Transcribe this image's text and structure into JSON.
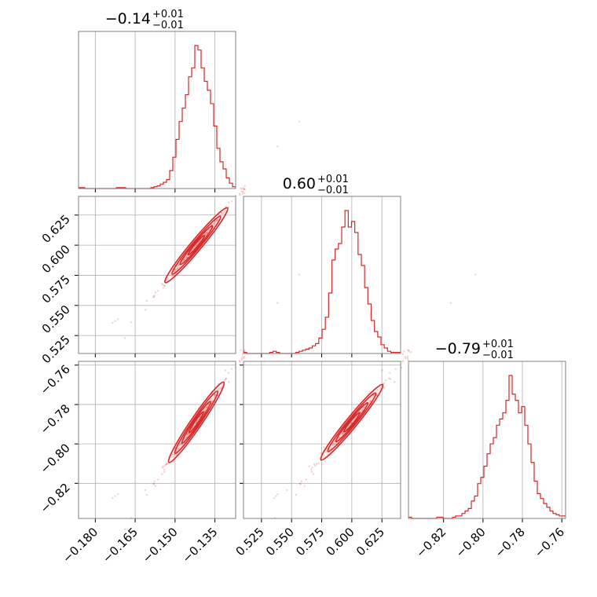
{
  "chart_data": {
    "type": "corner",
    "color": "#d62728",
    "grid": true,
    "titles": [
      {
        "value": "−0.14",
        "plus": "+0.01",
        "minus": "−0.01"
      },
      {
        "value": "0.60",
        "plus": "+0.01",
        "minus": "−0.01"
      },
      {
        "value": "−0.79",
        "plus": "+0.01",
        "minus": "−0.01"
      }
    ],
    "params": [
      {
        "range": [
          -0.1863,
          -0.1272
        ],
        "ticks": [
          -0.18,
          -0.165,
          -0.15,
          -0.135
        ],
        "tick_labels": [
          "−0.180",
          "−0.165",
          "−0.150",
          "−0.135"
        ]
      },
      {
        "range": [
          0.5101,
          0.6405
        ],
        "ticks": [
          0.525,
          0.55,
          0.575,
          0.6,
          0.625
        ],
        "tick_labels": [
          "0.525",
          "0.550",
          "0.575",
          "0.600",
          "0.625"
        ]
      },
      {
        "range": [
          -0.8378,
          -0.7581
        ],
        "ticks": [
          -0.82,
          -0.8,
          -0.78,
          -0.76
        ],
        "tick_labels": [
          "−0.82",
          "−0.80",
          "−0.78",
          "−0.76"
        ]
      }
    ],
    "histograms": [
      {
        "counts": [
          1,
          1,
          0,
          0,
          0,
          0,
          0,
          0,
          0,
          0,
          0,
          0,
          1,
          1,
          1,
          0,
          0,
          0,
          0,
          0,
          0,
          0,
          0,
          1,
          2,
          3,
          5,
          7,
          10,
          20,
          35,
          55,
          75,
          90,
          105,
          125,
          135,
          160,
          155,
          135,
          120,
          110,
          95,
          70,
          45,
          30,
          22,
          12,
          6,
          2
        ]
      },
      {
        "counts": [
          1,
          0,
          0,
          0,
          0,
          0,
          0,
          0,
          1,
          2,
          1,
          0,
          0,
          0,
          0,
          0,
          1,
          2,
          3,
          4,
          5,
          7,
          9,
          14,
          22,
          33,
          55,
          85,
          95,
          100,
          115,
          130,
          115,
          120,
          110,
          90,
          80,
          60,
          45,
          30,
          20,
          15,
          8,
          5,
          2,
          1,
          1,
          1
        ]
      },
      {
        "counts": [
          1,
          0,
          0,
          0,
          0,
          0,
          0,
          0,
          0,
          1,
          1,
          0,
          0,
          0,
          1,
          2,
          2,
          4,
          6,
          8,
          14,
          18,
          28,
          33,
          42,
          52,
          60,
          65,
          75,
          80,
          85,
          95,
          115,
          100,
          95,
          85,
          90,
          75,
          60,
          45,
          30,
          20,
          16,
          12,
          9,
          6,
          4,
          3,
          2,
          2
        ]
      }
    ]
  }
}
